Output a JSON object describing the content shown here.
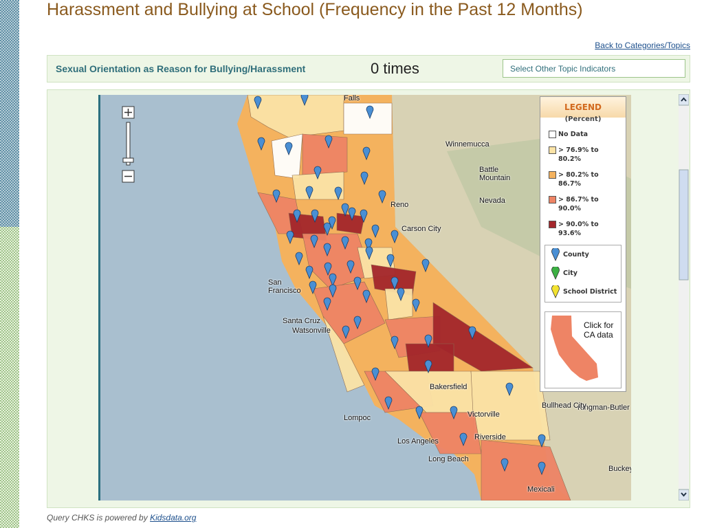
{
  "header": {
    "title": "Harassment and Bullying at School (Frequency in the Past 12 Months)",
    "back_link": "Back to Categories/Topics"
  },
  "indicator": {
    "label": "Sexual Orientation as Reason for Bullying/Harassment",
    "value": "0 times",
    "select_button": "Select Other Topic Indicators"
  },
  "map": {
    "labels": [
      "Falls",
      "Winnemucca",
      "Battle Mountain",
      "Reno",
      "Carson City",
      "Nevada",
      "San Francisco",
      "Santa Cruz",
      "Watsonville",
      "Lompoc",
      "Los Angeles",
      "Long Beach",
      "Bakersfield",
      "Victorville",
      "Riverside",
      "Kingman-Butler",
      "Bullhead City",
      "Buckeye",
      "Mexicali"
    ]
  },
  "legend": {
    "title": "LEGEND",
    "subtitle": "(Percent)",
    "ranges": [
      {
        "label": "No Data",
        "color": "#ffffff"
      },
      {
        "label": "> 76.9% to 80.2%",
        "color": "#fbe3a6"
      },
      {
        "label": "> 80.2% to 86.7%",
        "color": "#f4b25e"
      },
      {
        "label": "> 86.7% to 90.0%",
        "color": "#ee8465"
      },
      {
        "label": "> 90.0% to 93.6%",
        "color": "#a3262b"
      }
    ],
    "markers": [
      {
        "label": "County",
        "color": "#4a8fd4"
      },
      {
        "label": "City",
        "color": "#3cb043"
      },
      {
        "label": "School District",
        "color": "#f2e231"
      }
    ],
    "ca_link": "Click for CA data"
  },
  "footer": {
    "text": "Query CHKS is powered by",
    "link": "Kidsdata.org"
  }
}
